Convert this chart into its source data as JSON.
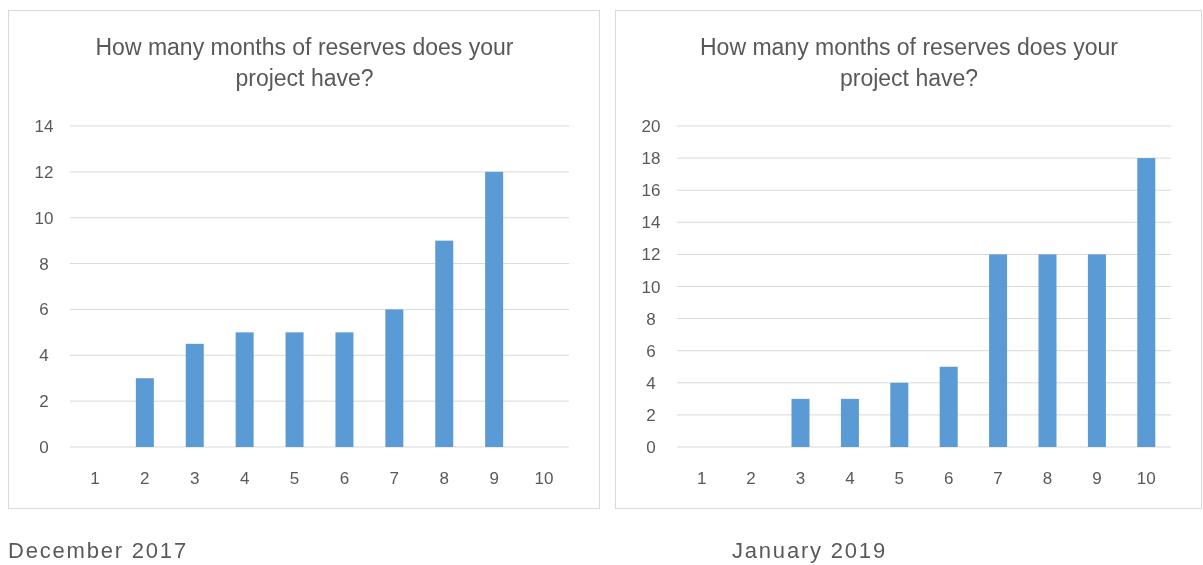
{
  "chart_data": [
    {
      "type": "bar",
      "title": "How many months of reserves does your project have?",
      "categories": [
        "1",
        "2",
        "3",
        "4",
        "5",
        "6",
        "7",
        "8",
        "9",
        "10"
      ],
      "values": [
        0,
        3,
        4.5,
        5,
        5,
        5,
        6,
        9,
        12,
        0
      ],
      "color": "#5b9bd5",
      "ylim": [
        0,
        14
      ],
      "yticks": [
        0,
        2,
        4,
        6,
        8,
        10,
        12,
        14
      ],
      "grid": "y",
      "annotations": [
        "December 2017"
      ]
    },
    {
      "type": "bar",
      "title": "How many months of reserves does your project have?",
      "categories": [
        "1",
        "2",
        "3",
        "4",
        "5",
        "6",
        "7",
        "8",
        "9",
        "10"
      ],
      "values": [
        0,
        0,
        3,
        3,
        4,
        5,
        12,
        12,
        12,
        18
      ],
      "color": "#5b9bd5",
      "ylim": [
        0,
        20
      ],
      "yticks": [
        0,
        2,
        4,
        6,
        8,
        10,
        12,
        14,
        16,
        18,
        20
      ],
      "grid": "y",
      "annotations": [
        "January 2019"
      ]
    }
  ]
}
